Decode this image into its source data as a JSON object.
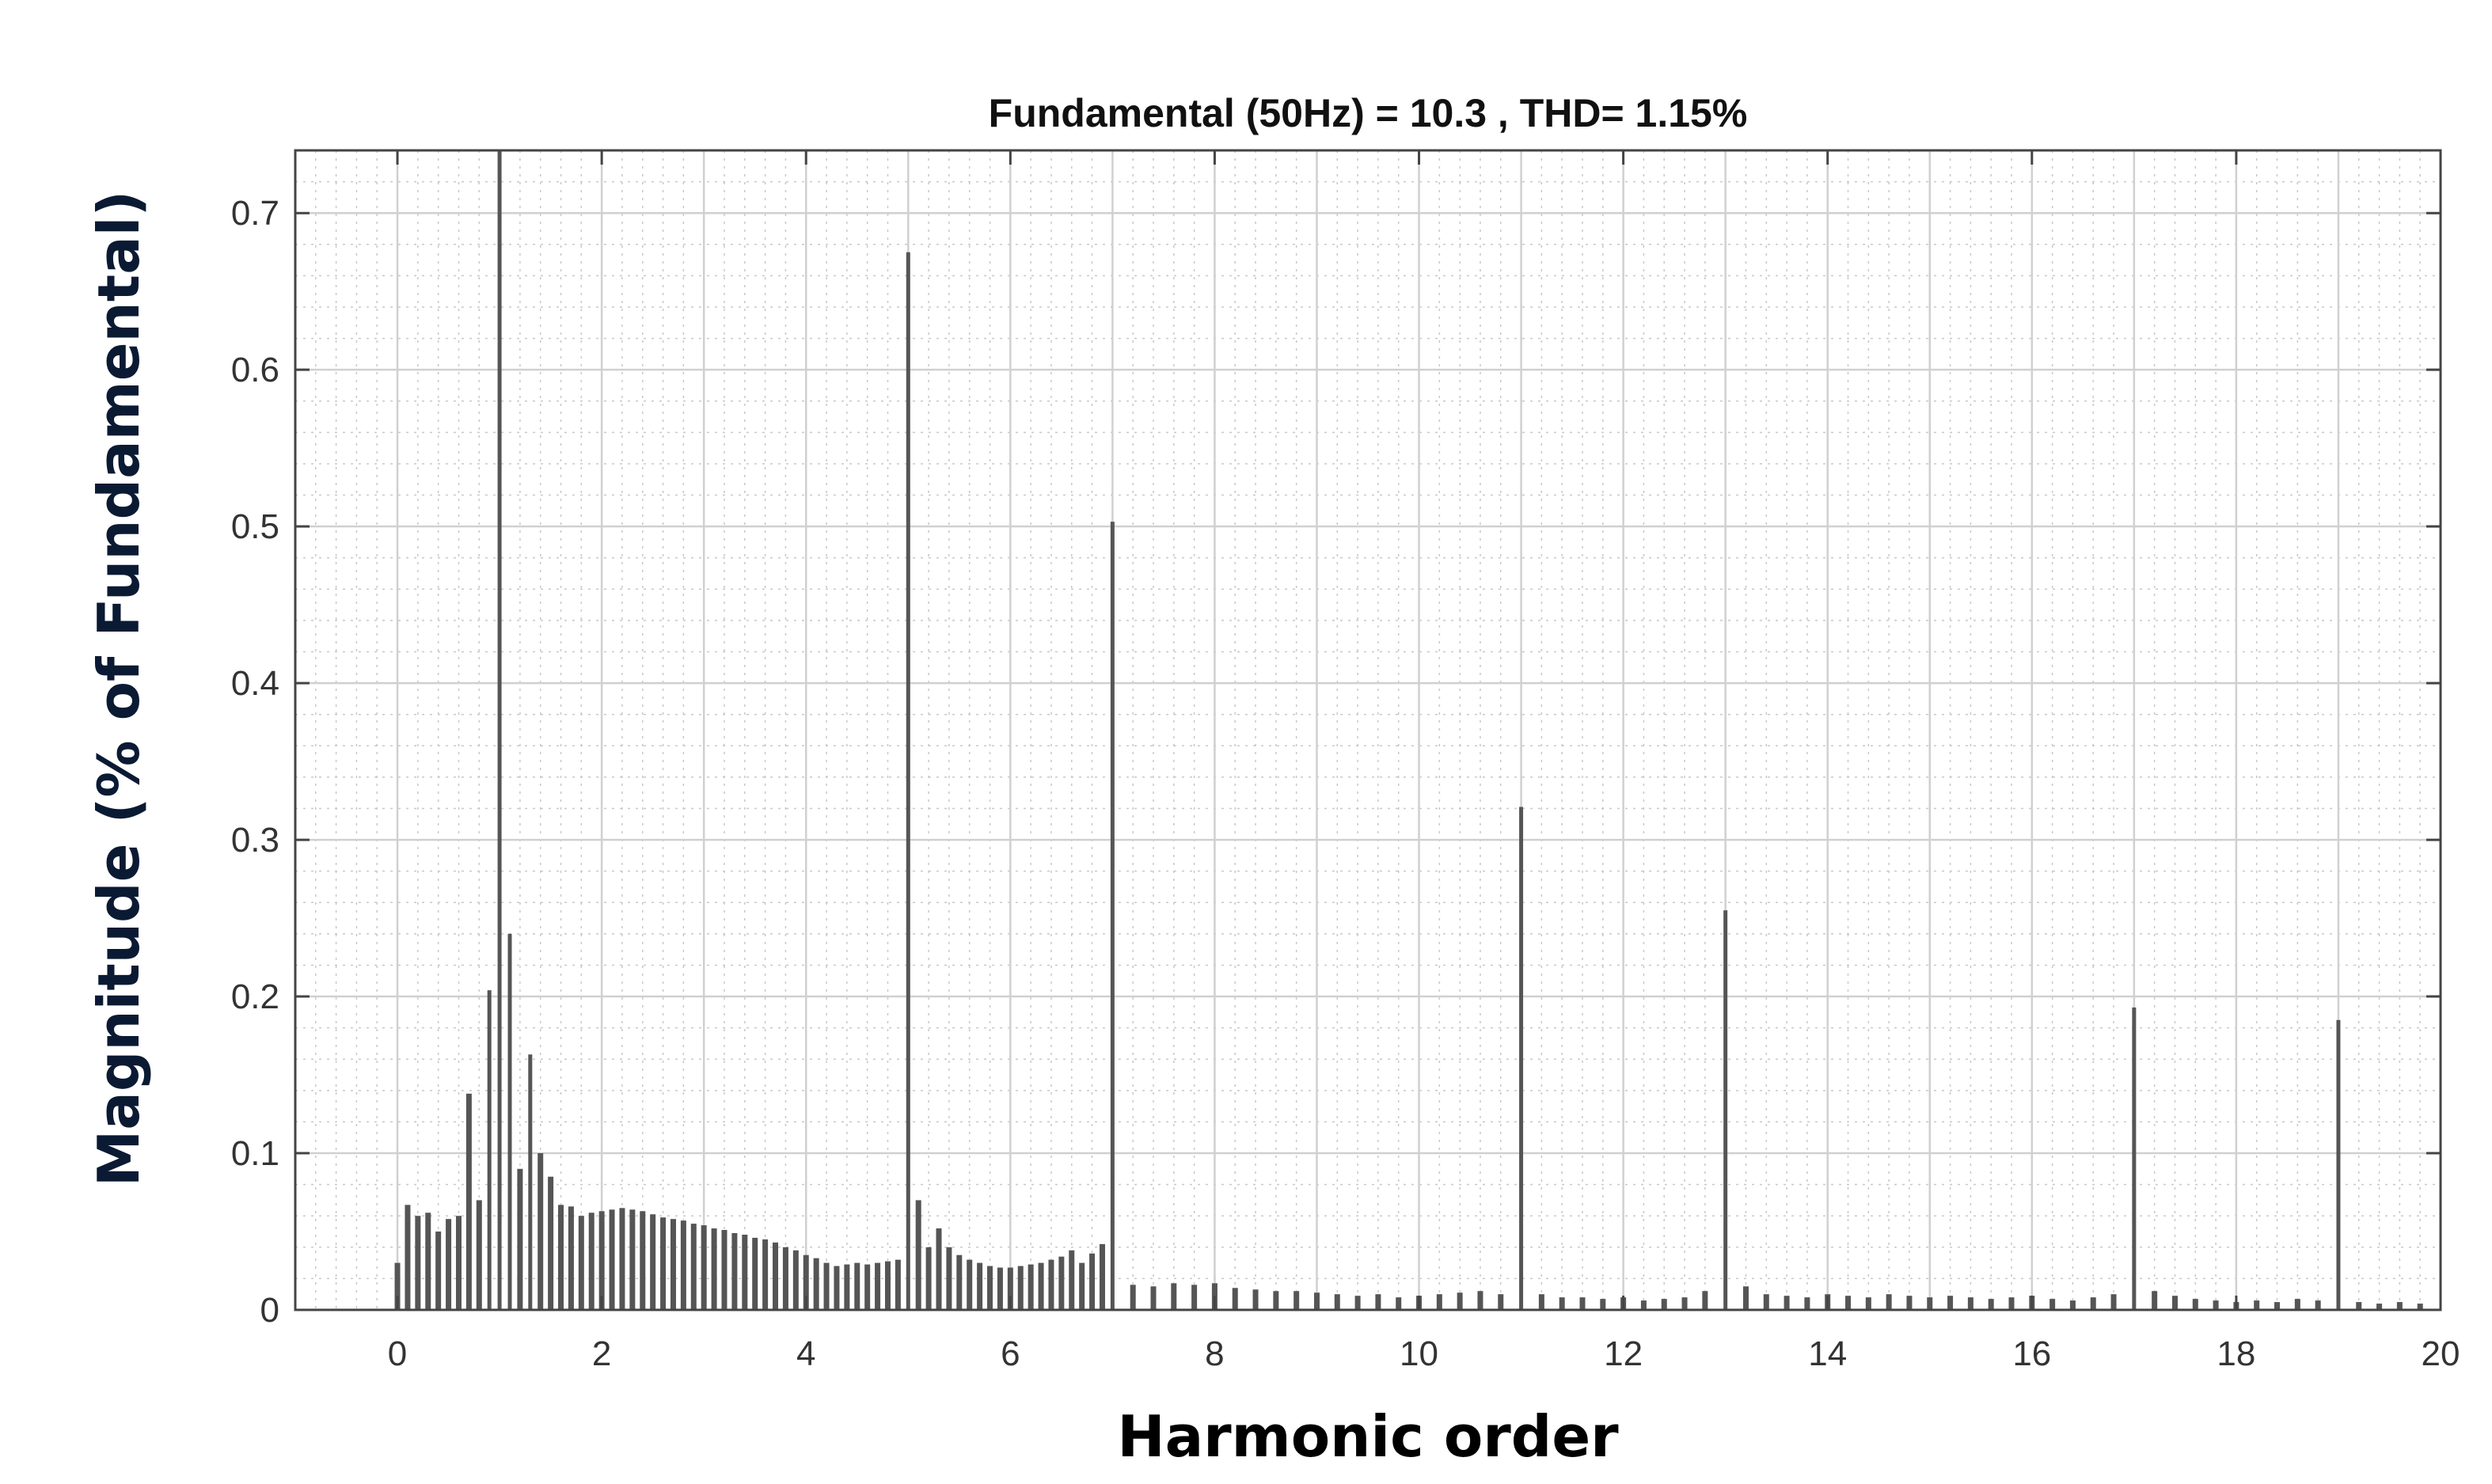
{
  "chart_data": {
    "type": "bar",
    "title": "Fundamental (50Hz) = 10.3 , THD= 1.15%",
    "xlabel": "Harmonic order",
    "ylabel": "Magnitude (% of Fundamental)",
    "xlim": [
      -1,
      20
    ],
    "ylim": [
      0,
      0.74
    ],
    "xticks": [
      0,
      2,
      4,
      6,
      8,
      10,
      12,
      14,
      16,
      18,
      20
    ],
    "yticks": [
      0,
      0.1,
      0.2,
      0.3,
      0.4,
      0.5,
      0.6,
      0.7
    ],
    "xtick_labels": [
      "0",
      "2",
      "4",
      "6",
      "8",
      "10",
      "12",
      "14",
      "16",
      "18",
      "20"
    ],
    "ytick_labels": [
      "0",
      "0.1",
      "0.2",
      "0.3",
      "0.4",
      "0.5",
      "0.6",
      "0.7"
    ],
    "grid": true,
    "minor_grid": true,
    "bar_color": "#555555",
    "series": [
      {
        "x": [
          0.0,
          0.1,
          0.2,
          0.3,
          0.4,
          0.5,
          0.6,
          0.7,
          0.8,
          0.9,
          1.0,
          1.1,
          1.2,
          1.3,
          1.4,
          1.5,
          1.6,
          1.7,
          1.8,
          1.9,
          2.0,
          2.1,
          2.2,
          2.3,
          2.4,
          2.5,
          2.6,
          2.7,
          2.8,
          2.9,
          3.0,
          3.1,
          3.2,
          3.3,
          3.4,
          3.5,
          3.6,
          3.7,
          3.8,
          3.9,
          4.0,
          4.1,
          4.2,
          4.3,
          4.4,
          4.5,
          4.6,
          4.7,
          4.8,
          4.9,
          5.0,
          5.1,
          5.2,
          5.3,
          5.4,
          5.5,
          5.6,
          5.7,
          5.8,
          5.9,
          6.0,
          6.1,
          6.2,
          6.3,
          6.4,
          6.5,
          6.6,
          6.7,
          6.8,
          6.9,
          7.0,
          7.2,
          7.4,
          7.6,
          7.8,
          8.0,
          8.2,
          8.4,
          8.6,
          8.8,
          9.0,
          9.2,
          9.4,
          9.6,
          9.8,
          10.0,
          10.2,
          10.4,
          10.6,
          10.8,
          11.0,
          11.2,
          11.4,
          11.6,
          11.8,
          12.0,
          12.2,
          12.4,
          12.6,
          12.8,
          13.0,
          13.2,
          13.4,
          13.6,
          13.8,
          14.0,
          14.2,
          14.4,
          14.6,
          14.8,
          15.0,
          15.2,
          15.4,
          15.6,
          15.8,
          16.0,
          16.2,
          16.4,
          16.6,
          16.8,
          17.0,
          17.2,
          17.4,
          17.6,
          17.8,
          18.0,
          18.2,
          18.4,
          18.6,
          18.8,
          19.0,
          19.2,
          19.4,
          19.6,
          19.8
        ],
        "values": [
          0.03,
          0.067,
          0.06,
          0.062,
          0.05,
          0.058,
          0.06,
          0.138,
          0.07,
          0.204,
          0.74,
          0.24,
          0.09,
          0.163,
          0.1,
          0.085,
          0.067,
          0.066,
          0.06,
          0.062,
          0.063,
          0.064,
          0.065,
          0.064,
          0.063,
          0.061,
          0.059,
          0.058,
          0.057,
          0.055,
          0.054,
          0.052,
          0.051,
          0.049,
          0.048,
          0.046,
          0.045,
          0.043,
          0.04,
          0.038,
          0.035,
          0.033,
          0.03,
          0.028,
          0.029,
          0.03,
          0.029,
          0.03,
          0.031,
          0.032,
          0.675,
          0.07,
          0.04,
          0.052,
          0.04,
          0.035,
          0.032,
          0.03,
          0.028,
          0.027,
          0.027,
          0.028,
          0.029,
          0.03,
          0.032,
          0.034,
          0.038,
          0.03,
          0.036,
          0.042,
          0.503,
          0.016,
          0.015,
          0.017,
          0.016,
          0.017,
          0.014,
          0.013,
          0.012,
          0.012,
          0.011,
          0.01,
          0.009,
          0.01,
          0.008,
          0.009,
          0.01,
          0.011,
          0.012,
          0.01,
          0.321,
          0.01,
          0.008,
          0.008,
          0.007,
          0.008,
          0.006,
          0.007,
          0.008,
          0.012,
          0.255,
          0.015,
          0.01,
          0.009,
          0.008,
          0.01,
          0.009,
          0.008,
          0.01,
          0.009,
          0.008,
          0.009,
          0.008,
          0.007,
          0.008,
          0.009,
          0.007,
          0.006,
          0.008,
          0.01,
          0.193,
          0.012,
          0.009,
          0.007,
          0.006,
          0.005,
          0.006,
          0.005,
          0.007,
          0.006,
          0.185,
          0.005,
          0.004,
          0.005,
          0.004
        ]
      }
    ]
  }
}
